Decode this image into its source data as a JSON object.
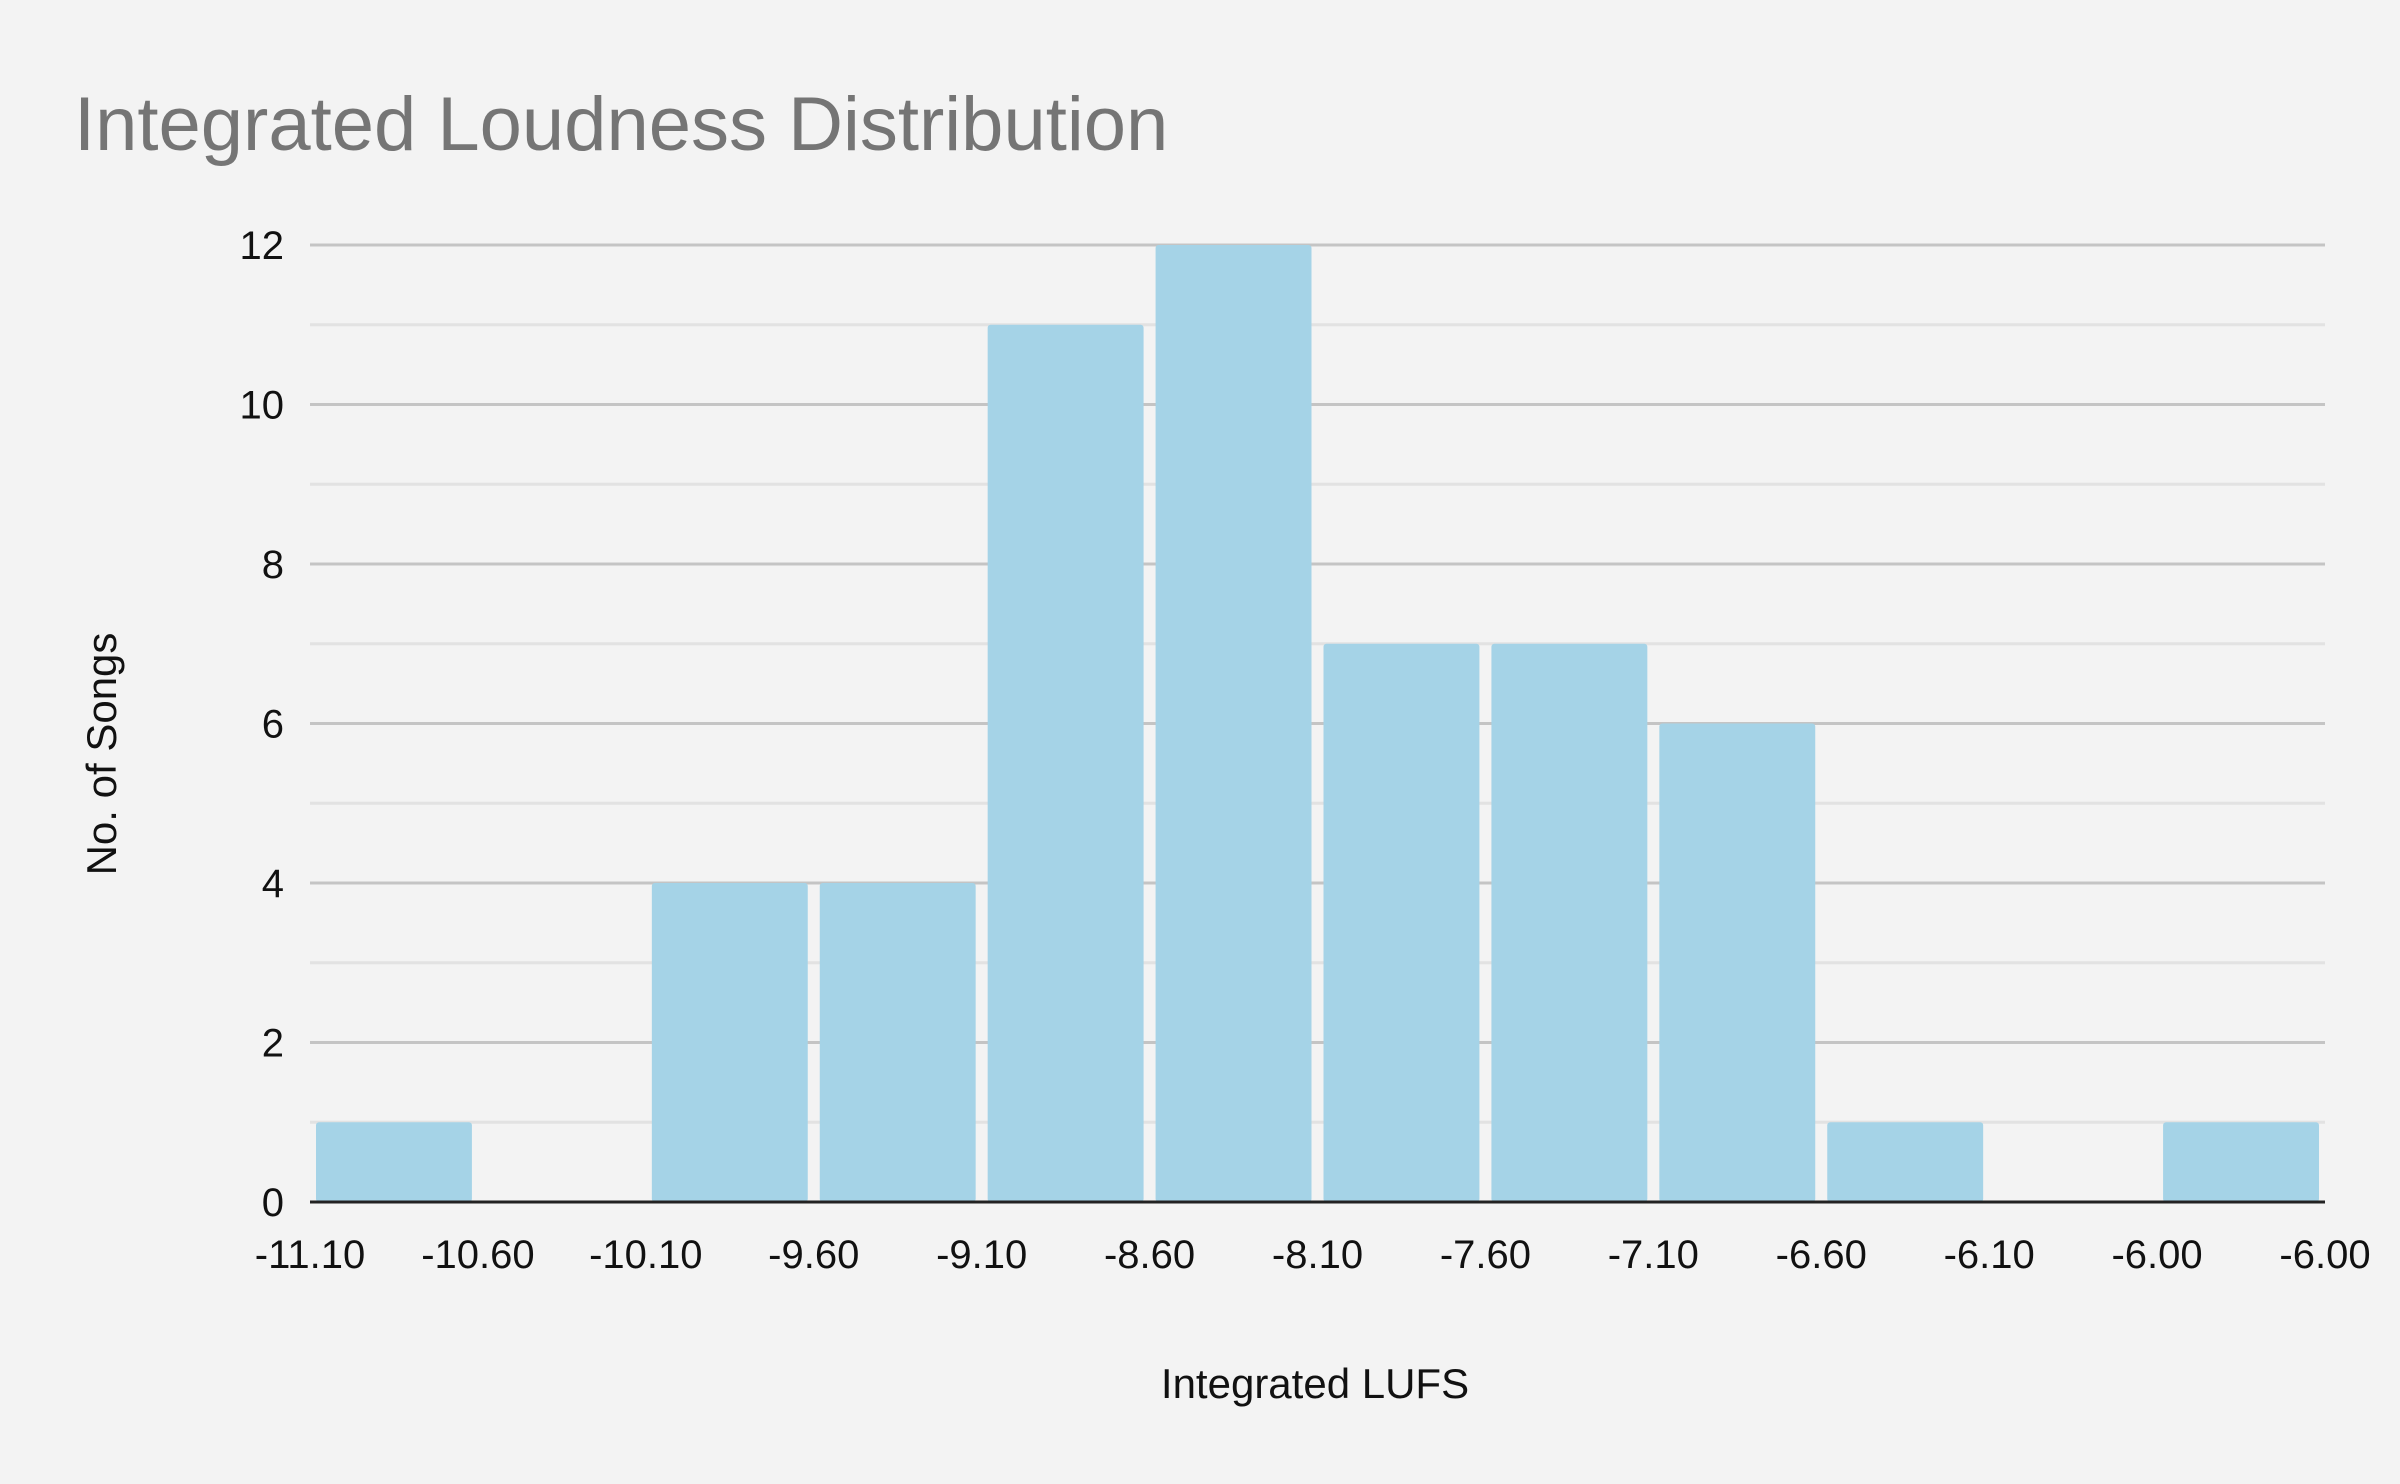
{
  "chart_data": {
    "type": "bar",
    "title": "Integrated Loudness Distribution",
    "xlabel": "Integrated LUFS",
    "ylabel": "No. of Songs",
    "x_tick_labels": [
      "-11.10",
      "-10.60",
      "-10.10",
      "-9.60",
      "-9.10",
      "-8.60",
      "-8.10",
      "-7.60",
      "-7.10",
      "-6.60",
      "-6.10",
      "-6.00",
      "-6.00"
    ],
    "y_ticks": [
      "0",
      "2",
      "4",
      "6",
      "8",
      "10",
      "12"
    ],
    "ylim": [
      0,
      12
    ],
    "values": [
      1,
      0,
      4,
      4,
      11,
      12,
      7,
      7,
      6,
      1,
      0,
      1
    ],
    "grid": true,
    "legend": "none",
    "colors": {
      "bar": "#a5d3e7",
      "background": "#f3f3f3",
      "title": "#757575"
    }
  }
}
